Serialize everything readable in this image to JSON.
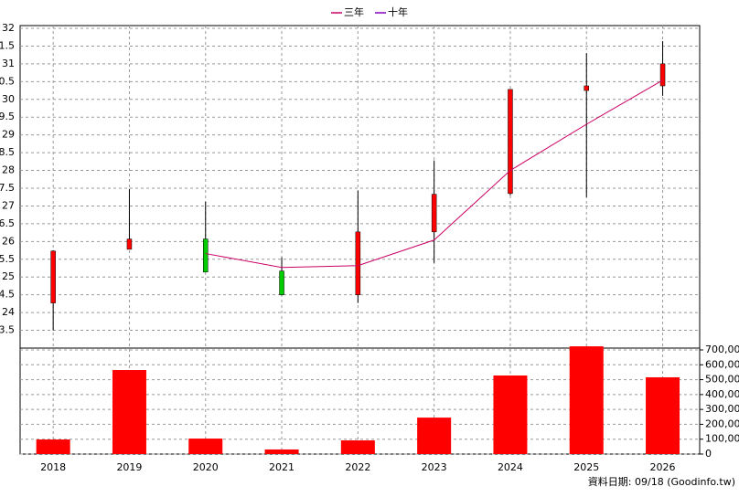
{
  "chart_data": {
    "type": "candlestick",
    "categories": [
      "2018",
      "2019",
      "2020",
      "2021",
      "2022",
      "2023",
      "2024",
      "2025",
      "2026"
    ],
    "open": [
      24.27,
      25.78,
      26.07,
      25.17,
      24.5,
      26.27,
      27.35,
      30.25,
      30.38
    ],
    "high": [
      25.75,
      27.48,
      27.12,
      25.55,
      27.43,
      28.28,
      30.28,
      31.3,
      31.64
    ],
    "low": [
      23.5,
      25.78,
      25.14,
      24.48,
      24.27,
      25.4,
      27.3,
      27.25,
      30.1
    ],
    "close": [
      25.73,
      26.07,
      25.14,
      24.5,
      26.27,
      27.33,
      30.28,
      30.38,
      31.0
    ],
    "up_color": "#ff0000",
    "down_color": "#00cc00",
    "series": [
      {
        "name": "三年",
        "color": "#cc0066",
        "values": [
          null,
          null,
          25.66,
          25.27,
          25.32,
          26.04,
          28.0,
          29.3,
          30.54
        ]
      },
      {
        "name": "十年",
        "color": "#8000c0",
        "values": [
          null,
          null,
          null,
          null,
          null,
          null,
          null,
          null,
          null
        ]
      }
    ],
    "ylim": [
      23,
      32
    ],
    "yticks": [
      {
        "value": 23.5,
        "label": "3.5"
      },
      24,
      {
        "value": 24.5,
        "label": "4.5"
      },
      25,
      {
        "value": 25.5,
        "label": "5.5"
      },
      26,
      {
        "value": 26.5,
        "label": "6.5"
      },
      27,
      {
        "value": 27.5,
        "label": "7.5"
      },
      28,
      {
        "value": 28.5,
        "label": "8.5"
      },
      29,
      {
        "value": 29.5,
        "label": "9.5"
      },
      30,
      {
        "value": 30.5,
        "label": "0.5"
      },
      31,
      {
        "value": 31.5,
        "label": "1.5"
      },
      32
    ],
    "volume": [
      98000,
      565000,
      104000,
      31000,
      92000,
      245000,
      528000,
      724000,
      516000
    ],
    "volume_color": "#ff0000",
    "y2lim": [
      0,
      700000
    ],
    "y2ticks": [
      0,
      {
        "value": 100000,
        "label": "100,000"
      },
      {
        "value": 200000,
        "label": "200,000"
      },
      {
        "value": 300000,
        "label": "300,000"
      },
      {
        "value": 400000,
        "label": "400,000"
      },
      {
        "value": 500000,
        "label": "500,000"
      },
      {
        "value": 600000,
        "label": "600,000"
      },
      {
        "value": 700000,
        "label": "700,000"
      }
    ],
    "grid": true,
    "legend": "top",
    "footer": "資料日期: 09/18  (Goodinfo.tw)"
  }
}
